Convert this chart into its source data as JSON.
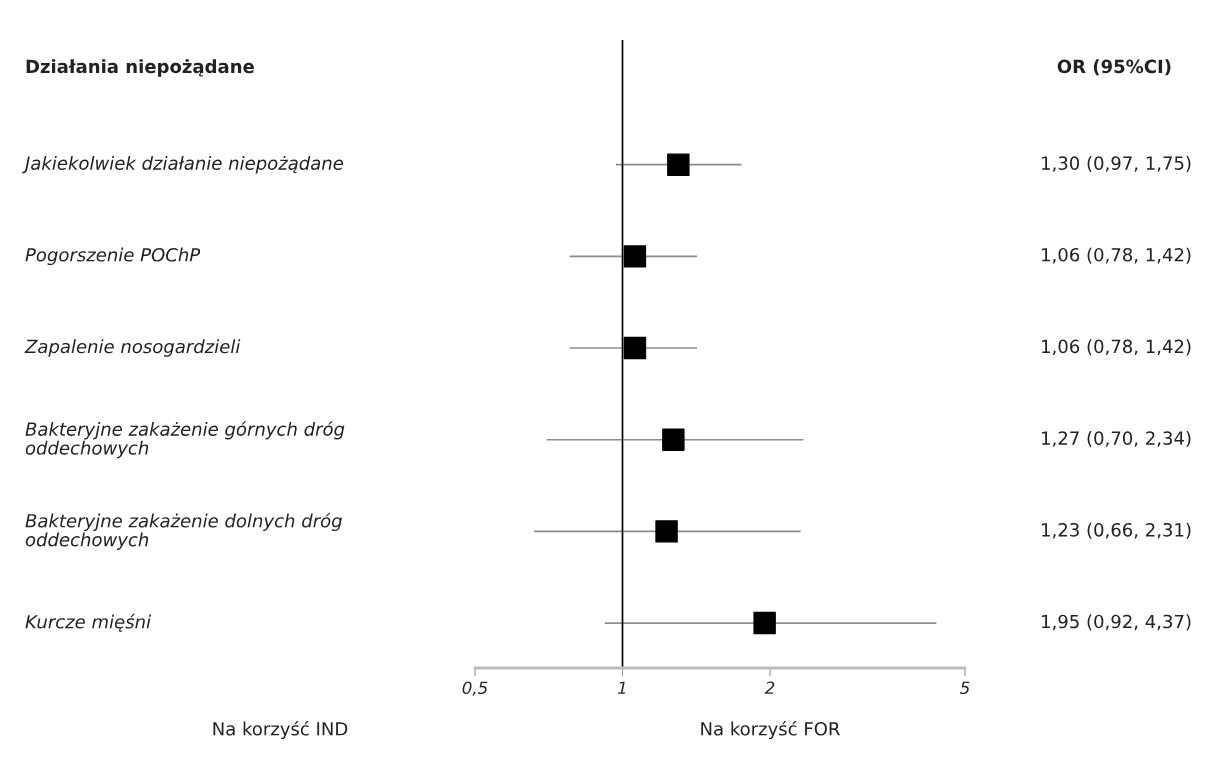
{
  "chart_data": {
    "type": "scatter",
    "orientation": "horizontal",
    "log": "x",
    "categories": [
      "Jakiekolwiek działanie niepożądane",
      "Pogorszenie POChP",
      "Zapalenie nosogardzieli",
      "Bakteryjne zakażenie górnych dróg\noddechowych",
      "Bakteryjne zakażenie dolnych dróg\noddechowych",
      "Kurcze mięśni"
    ],
    "values": [
      1.3,
      1.06,
      1.06,
      1.27,
      1.23,
      1.95
    ],
    "errors": [
      [
        0.97,
        1.75
      ],
      [
        0.78,
        1.42
      ],
      [
        0.78,
        1.42
      ],
      [
        0.7,
        2.34
      ],
      [
        0.66,
        2.31
      ],
      [
        0.92,
        4.37
      ]
    ],
    "value_labels": [
      "1,30 (0,97, 1,75)",
      "1,06 (0,78, 1,42)",
      "1,06 (0,78, 1,42)",
      "1,27 (0,70, 2,34)",
      "1,23 (0,66, 2,31)",
      "1,95 (0,92, 4,37)"
    ],
    "color": "#000000",
    "marker": "square",
    "grid": false,
    "legend": false,
    "tick_labels": "x",
    "xlim": [
      0.5,
      5
    ],
    "xticks": [
      {
        "value": 0.5,
        "label": "0,5"
      },
      1,
      2,
      5
    ],
    "ref_lines": [
      {
        "axis": "x",
        "value": 1,
        "color": "#000000"
      }
    ],
    "annotations": [
      "Działania niepożądane",
      "OR (95%CI)",
      "Na korzyść IND",
      "Na korzyść FOR"
    ]
  }
}
